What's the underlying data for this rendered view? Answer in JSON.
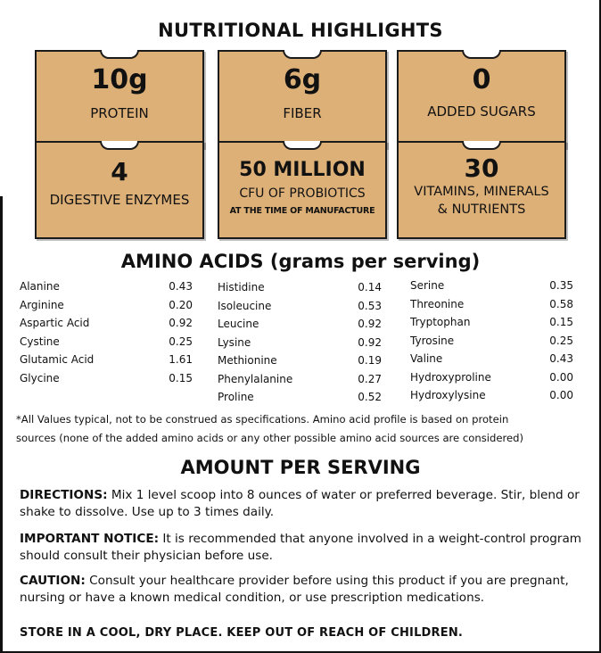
{
  "highlights": {
    "title": "NUTRITIONAL HIGHLIGHTS",
    "tiles": [
      {
        "big": "10g",
        "sub": "PROTEIN"
      },
      {
        "big": "6g",
        "sub": "FIBER"
      },
      {
        "big": "0",
        "sub": "ADDED SUGARS"
      },
      {
        "big": "4",
        "sub": "DIGESTIVE ENZYMES"
      },
      {
        "big": "50 MILLION",
        "sub": "CFU OF PROBIOTICS",
        "note": "AT THE TIME OF MANUFACTURE"
      },
      {
        "big": "30",
        "sub1": "VITAMINS, MINERALS",
        "sub2": "& NUTRIENTS"
      }
    ],
    "tile_color": "#ddb078"
  },
  "amino": {
    "title": "AMINO ACIDS (grams per serving)",
    "col1": [
      {
        "name": "Alanine",
        "value": "0.43"
      },
      {
        "name": "Arginine",
        "value": "0.20"
      },
      {
        "name": "Aspartic Acid",
        "value": "0.92"
      },
      {
        "name": "Cystine",
        "value": "0.25"
      },
      {
        "name": "Glutamic Acid",
        "value": "1.61"
      },
      {
        "name": "Glycine",
        "value": "0.15"
      }
    ],
    "col2": [
      {
        "name": "Histidine",
        "value": "0.14"
      },
      {
        "name": "Isoleucine",
        "value": "0.53"
      },
      {
        "name": "Leucine",
        "value": "0.92"
      },
      {
        "name": "Lysine",
        "value": "0.92"
      },
      {
        "name": "Methionine",
        "value": "0.19"
      },
      {
        "name": "Phenylalanine",
        "value": "0.27"
      },
      {
        "name": "Proline",
        "value": "0.52"
      }
    ],
    "col3": [
      {
        "name": "Serine",
        "value": "0.35"
      },
      {
        "name": "Threonine",
        "value": "0.58"
      },
      {
        "name": "Tryptophan",
        "value": "0.15"
      },
      {
        "name": "Tyrosine",
        "value": "0.25"
      },
      {
        "name": "Valine",
        "value": "0.43"
      },
      {
        "name": "Hydroxyproline",
        "value": "0.00"
      },
      {
        "name": "Hydroxylysine",
        "value": "0.00"
      }
    ],
    "note_line1": "*All Values typical, not to be construed as specifications. Amino acid profile is based  on protein",
    "note_line2": "sources (none of the added amino acids or any other possible amino  acid sources are considered)"
  },
  "serving": {
    "title": "AMOUNT PER SERVING",
    "directions_label": "DIRECTIONS:",
    "directions_text": " Mix 1 level scoop into 8 ounces of water or preferred beverage. Stir, blend or shake to dissolve. Use up to 3 times daily.",
    "notice_label": "IMPORTANT NOTICE:",
    "notice_text": " It is recommended that anyone involved in a weight-control program should consult  their physician before use.",
    "caution_label": "CAUTION:",
    "caution_text": " Consult your healthcare provider before using this product if you are pregnant, nursing or have a known medical condition, or use prescription medications.",
    "store": "STORE IN A COOL, DRY PLACE.  KEEP OUT OF REACH OF CHILDREN."
  }
}
